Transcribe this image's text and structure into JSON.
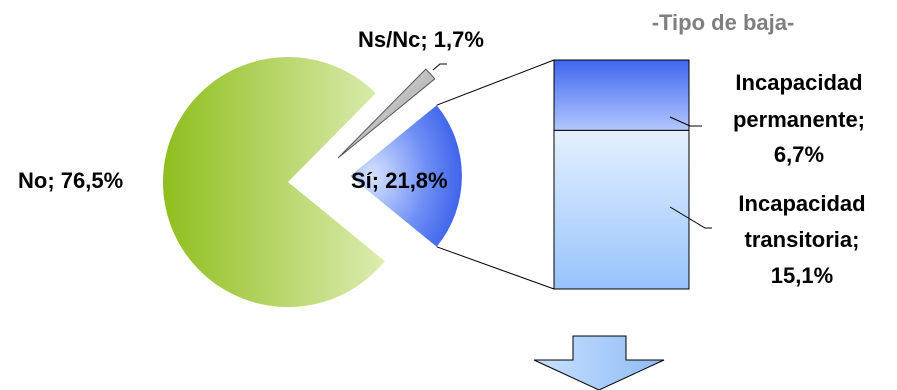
{
  "chart_data": [
    {
      "type": "pie",
      "slices": [
        {
          "label": "No",
          "value": 76.5,
          "text": "No; 76,5%",
          "color": "#9acd32"
        },
        {
          "label": "Sí",
          "value": 21.8,
          "text": "Sí; 21,8%",
          "color": "#4169e1"
        },
        {
          "label": "Ns/Nc",
          "value": 1.7,
          "text": "Ns/Nc; 1,7%",
          "color": "#a0a0a0"
        }
      ],
      "exploded": true
    },
    {
      "type": "bar",
      "stacked": true,
      "title": "-Tipo de baja-",
      "segments": [
        {
          "label": "Incapacidad permanente",
          "value": 6.7,
          "lines": [
            "Incapacidad",
            "permanente;",
            "6,7%"
          ],
          "color": "#5a7ff0"
        },
        {
          "label": "Incapacidad transitoria",
          "value": 15.1,
          "lines": [
            "Incapacidad",
            "transitoria;",
            "15,1%"
          ],
          "color": "#b7d7ff"
        }
      ],
      "total": 21.8
    }
  ]
}
